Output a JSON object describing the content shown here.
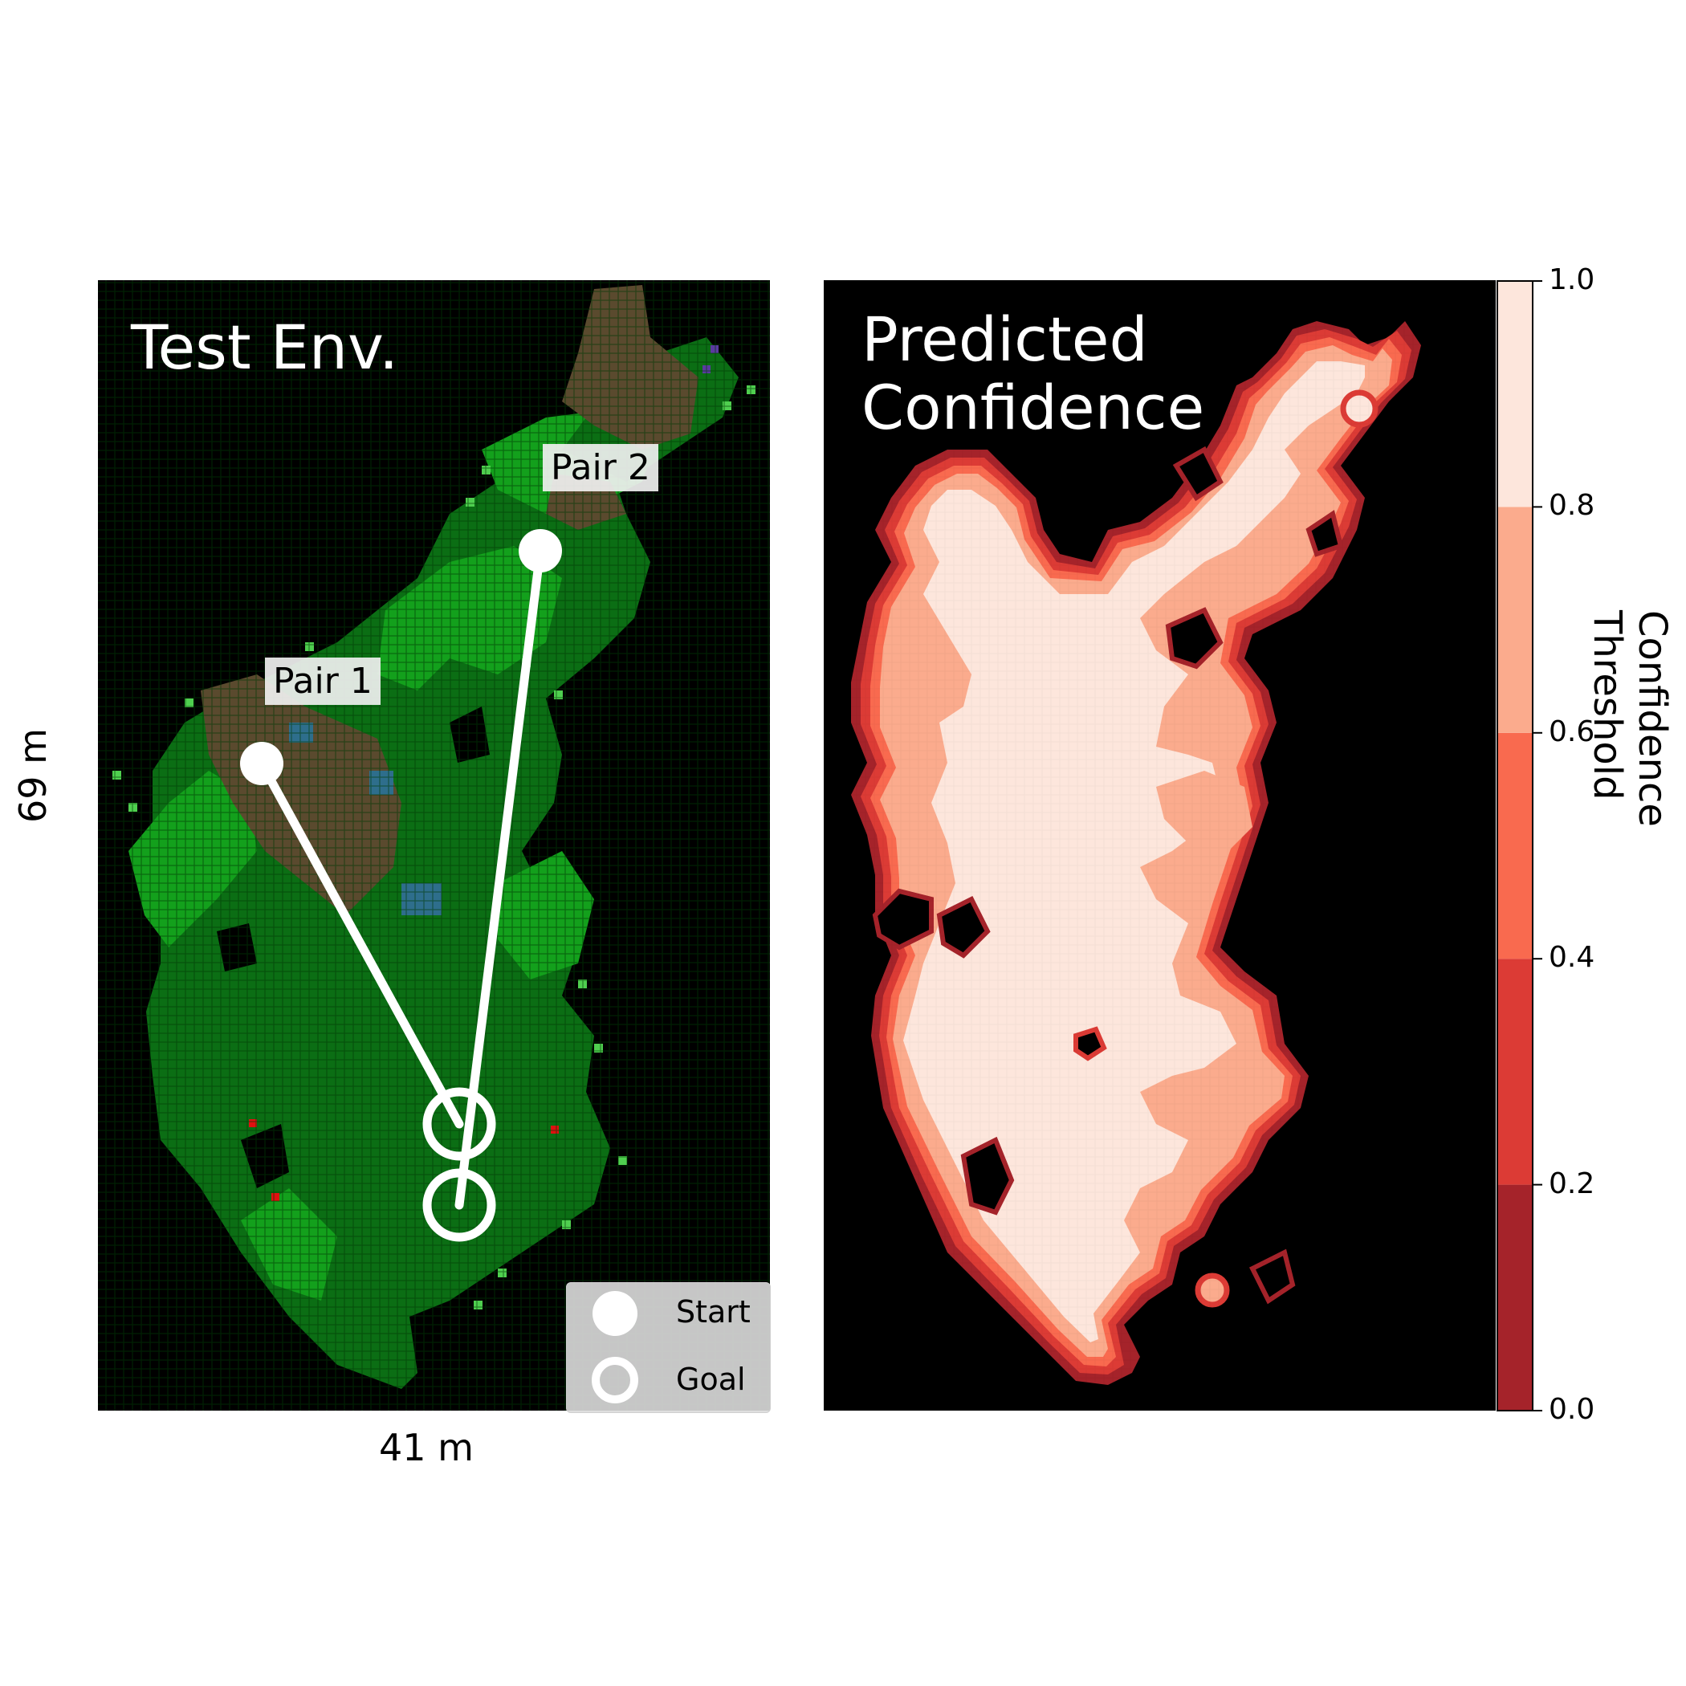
{
  "chart_data": [
    {
      "type": "heatmap",
      "title": "Test Env.",
      "xlabel": "41 m",
      "ylabel": "69 m",
      "colors": {
        "background": "#000000",
        "vegetation_dark": "#0b6e14",
        "vegetation_mid": "#13a01c",
        "vegetation_light": "#4fcf4f",
        "soil": "#5a4a2e",
        "water": "#2e6e8c",
        "path": "#ffffff"
      },
      "pairs": [
        {
          "label": "Pair 1"
        },
        {
          "label": "Pair 2"
        }
      ],
      "legend": {
        "placement": "lower-right",
        "entries": [
          {
            "label": "Start",
            "marker": "filled-circle"
          },
          {
            "label": "Goal",
            "marker": "open-circle"
          }
        ]
      }
    },
    {
      "type": "heatmap",
      "title": "Predicted\nConfidence",
      "colorbar": {
        "label": "Confidence Threshold",
        "ticks": [
          "0.0",
          "0.2",
          "0.4",
          "0.6",
          "0.8",
          "1.0"
        ],
        "levels": [
          {
            "from": 0.0,
            "to": 0.2,
            "color": "#a5232a"
          },
          {
            "from": 0.2,
            "to": 0.4,
            "color": "#dc3b35"
          },
          {
            "from": 0.4,
            "to": 0.6,
            "color": "#f96a4f"
          },
          {
            "from": 0.6,
            "to": 0.8,
            "color": "#fbab8d"
          },
          {
            "from": 0.8,
            "to": 1.0,
            "color": "#fde6dc"
          }
        ]
      }
    }
  ]
}
